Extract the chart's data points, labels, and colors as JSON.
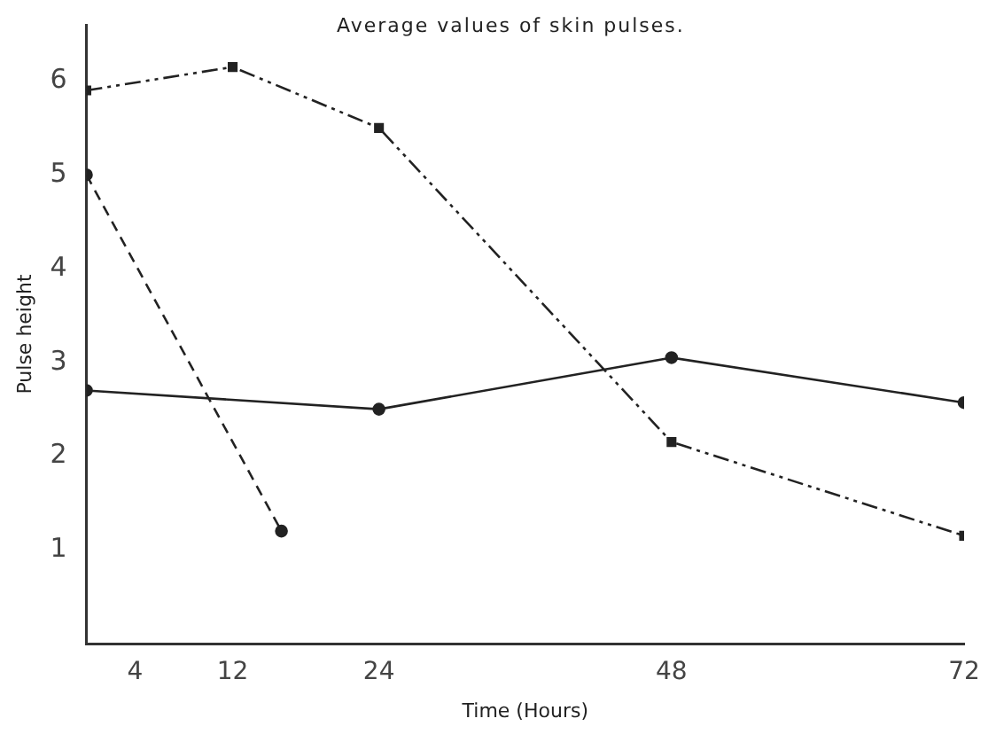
{
  "chart_data": {
    "type": "line",
    "xlabel": "Time (Hours)",
    "ylabel": "Pulse height",
    "annotations": [
      "Average values of skin pulses."
    ],
    "xlim": [
      0,
      72
    ],
    "xticks": [
      4,
      12,
      24,
      48,
      72
    ],
    "ylim": [
      0,
      6.6
    ],
    "yticks": [
      1,
      2,
      3,
      4,
      5,
      6
    ],
    "grid": false,
    "legend": false,
    "series": [
      {
        "color": "#222222",
        "x": [
          0,
          24,
          48,
          72
        ],
        "values": [
          2.7,
          2.5,
          3.05,
          2.57
        ],
        "marker": "circle",
        "line_style": "solid"
      },
      {
        "color": "#222222",
        "x": [
          0,
          16
        ],
        "values": [
          5.0,
          1.2
        ],
        "marker": "circle",
        "line_style": "dashed"
      },
      {
        "color": "#222222",
        "x": [
          0,
          12,
          24,
          48,
          72
        ],
        "values": [
          5.9,
          6.15,
          5.5,
          2.15,
          1.15
        ],
        "marker": "square",
        "line_style": "dotted"
      }
    ]
  }
}
